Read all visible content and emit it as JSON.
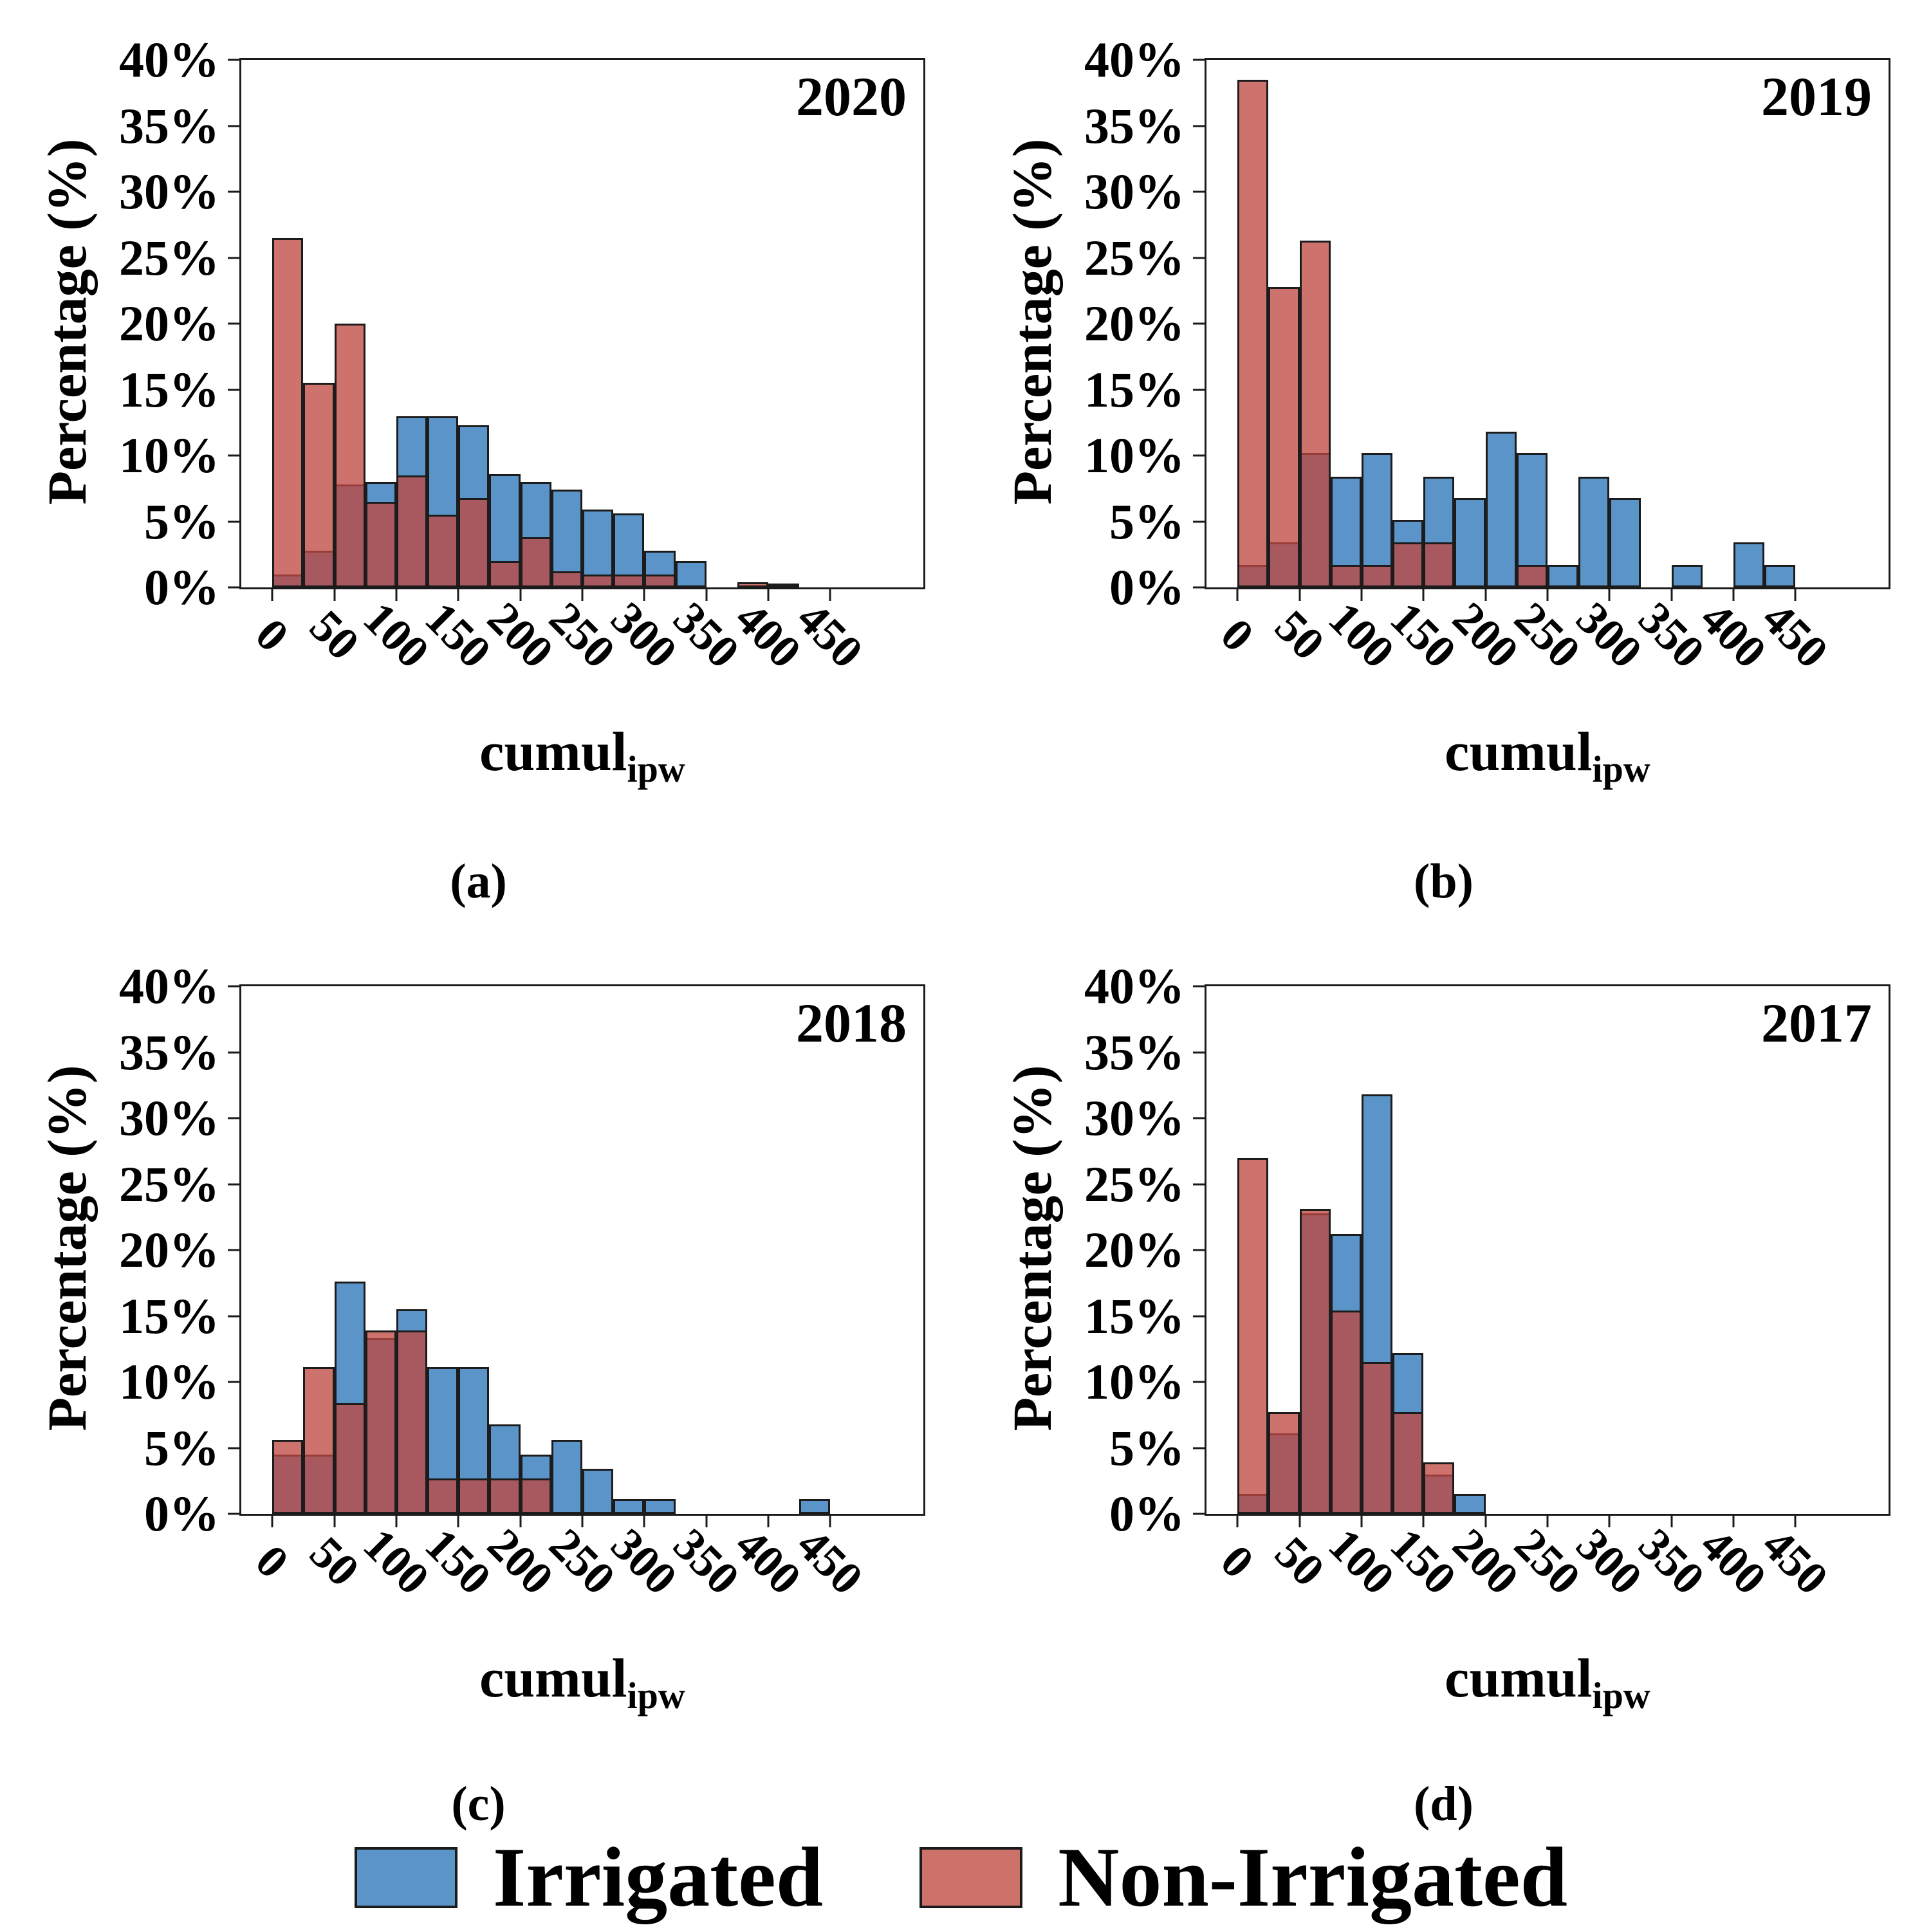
{
  "chart_data": {
    "type": "bar",
    "subtype": "overlaid-histograms",
    "y_label": "Percentage (%)",
    "x_label_main": "cumul",
    "x_label_sub": "ipw",
    "ylim": [
      0,
      40
    ],
    "y_max": 40,
    "x_min": -25,
    "x_max": 525,
    "bin_width": 25,
    "grid": "off",
    "y_tick_values": [
      0,
      5,
      10,
      15,
      20,
      25,
      30,
      35,
      40
    ],
    "y_tick_labels": [
      "0%",
      "5%",
      "10%",
      "15%",
      "20%",
      "25%",
      "30%",
      "35%",
      "40%"
    ],
    "x_tick_values": [
      0,
      50,
      100,
      150,
      200,
      250,
      300,
      350,
      400,
      450
    ],
    "x_tick_labels": [
      "0",
      "50",
      "100",
      "150",
      "200",
      "250",
      "300",
      "350",
      "400",
      "450"
    ],
    "panels": [
      {
        "year": "2020",
        "caption": "(a)",
        "irrigated": [
          [
            0,
            1.0
          ],
          [
            25,
            2.8
          ],
          [
            50,
            7.8
          ],
          [
            75,
            8.0
          ],
          [
            100,
            13.0
          ],
          [
            125,
            13.0
          ],
          [
            150,
            12.3
          ],
          [
            175,
            8.6
          ],
          [
            200,
            8.0
          ],
          [
            225,
            7.4
          ],
          [
            250,
            5.9
          ],
          [
            275,
            5.6
          ],
          [
            300,
            2.8
          ],
          [
            325,
            2.0
          ],
          [
            400,
            0.3
          ]
        ],
        "non_irrigated": [
          [
            0,
            26.5
          ],
          [
            25,
            15.5
          ],
          [
            50,
            20.0
          ],
          [
            75,
            6.5
          ],
          [
            100,
            8.5
          ],
          [
            125,
            5.5
          ],
          [
            150,
            6.8
          ],
          [
            175,
            2.0
          ],
          [
            200,
            3.8
          ],
          [
            225,
            1.2
          ],
          [
            250,
            1.0
          ],
          [
            275,
            1.0
          ],
          [
            300,
            1.0
          ],
          [
            375,
            0.4
          ]
        ]
      },
      {
        "year": "2019",
        "caption": "(b)",
        "irrigated": [
          [
            0,
            1.7
          ],
          [
            25,
            3.4
          ],
          [
            50,
            10.2
          ],
          [
            75,
            8.4
          ],
          [
            100,
            10.2
          ],
          [
            125,
            5.1
          ],
          [
            150,
            8.4
          ],
          [
            175,
            6.8
          ],
          [
            200,
            11.8
          ],
          [
            225,
            10.2
          ],
          [
            250,
            1.7
          ],
          [
            275,
            8.4
          ],
          [
            300,
            6.8
          ],
          [
            350,
            1.7
          ],
          [
            400,
            3.4
          ],
          [
            425,
            1.7
          ]
        ],
        "non_irrigated": [
          [
            0,
            38.5
          ],
          [
            25,
            22.8
          ],
          [
            50,
            26.3
          ],
          [
            75,
            1.7
          ],
          [
            100,
            1.7
          ],
          [
            125,
            3.4
          ],
          [
            150,
            3.4
          ],
          [
            225,
            1.7
          ]
        ]
      },
      {
        "year": "2018",
        "caption": "(c)",
        "irrigated": [
          [
            0,
            4.5
          ],
          [
            25,
            4.5
          ],
          [
            50,
            17.6
          ],
          [
            75,
            13.3
          ],
          [
            100,
            15.5
          ],
          [
            125,
            11.1
          ],
          [
            150,
            11.1
          ],
          [
            175,
            6.8
          ],
          [
            200,
            4.5
          ],
          [
            225,
            5.6
          ],
          [
            250,
            3.4
          ],
          [
            275,
            1.1
          ],
          [
            300,
            1.1
          ],
          [
            425,
            1.1
          ]
        ],
        "non_irrigated": [
          [
            0,
            5.6
          ],
          [
            25,
            11.1
          ],
          [
            50,
            8.4
          ],
          [
            75,
            13.9
          ],
          [
            100,
            13.9
          ],
          [
            125,
            2.7
          ],
          [
            150,
            2.7
          ],
          [
            175,
            2.7
          ],
          [
            200,
            2.7
          ]
        ]
      },
      {
        "year": "2017",
        "caption": "(d)",
        "irrigated": [
          [
            0,
            1.5
          ],
          [
            25,
            6.1
          ],
          [
            50,
            22.8
          ],
          [
            75,
            21.2
          ],
          [
            100,
            31.8
          ],
          [
            125,
            12.2
          ],
          [
            150,
            3.0
          ],
          [
            175,
            1.5
          ]
        ],
        "non_irrigated": [
          [
            0,
            27.0
          ],
          [
            25,
            7.7
          ],
          [
            50,
            23.1
          ],
          [
            75,
            15.4
          ],
          [
            100,
            11.5
          ],
          [
            125,
            7.7
          ],
          [
            150,
            3.9
          ]
        ]
      }
    ]
  },
  "legend": [
    {
      "label": "Irrigated",
      "color": "#5B94C8"
    },
    {
      "label": "Non-Irrigated",
      "color": "#CD726B"
    }
  ],
  "style": {
    "irrigated_fill": "#5B94C8",
    "non_irrigated_fill": "rgba(190,72,64,0.77)",
    "bar_border": "#1c1c1c"
  }
}
